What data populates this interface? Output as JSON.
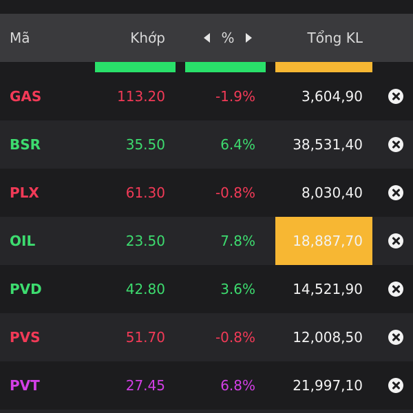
{
  "header": {
    "col_symbol": "Mã",
    "col_match": "Khớp",
    "col_percent": "%",
    "col_total_volume": "Tổng KL"
  },
  "colors": {
    "up": "#3ddc6f",
    "down": "#f23a57",
    "ceiling": "#d33fe6",
    "highlight": "#f7b733",
    "indicator_green": "#29e06a"
  },
  "rows": [
    {
      "symbol": "GAS",
      "price": "113.20",
      "percent": "-1.9%",
      "volume": "3,604,90",
      "trend": "down",
      "highlight": false
    },
    {
      "symbol": "BSR",
      "price": "35.50",
      "percent": "6.4%",
      "volume": "38,531,40",
      "trend": "up",
      "highlight": false
    },
    {
      "symbol": "PLX",
      "price": "61.30",
      "percent": "-0.8%",
      "volume": "8,030,40",
      "trend": "down",
      "highlight": false
    },
    {
      "symbol": "OIL",
      "price": "23.50",
      "percent": "7.8%",
      "volume": "18,887,70",
      "trend": "up",
      "highlight": true
    },
    {
      "symbol": "PVD",
      "price": "42.80",
      "percent": "3.6%",
      "volume": "14,521,90",
      "trend": "up",
      "highlight": false
    },
    {
      "symbol": "PVS",
      "price": "51.70",
      "percent": "-0.8%",
      "volume": "12,008,50",
      "trend": "down",
      "highlight": false
    },
    {
      "symbol": "PVT",
      "price": "27.45",
      "percent": "6.8%",
      "volume": "21,997,10",
      "trend": "ceiling",
      "highlight": false
    }
  ],
  "icons": {
    "sort_prev": "caret-left-icon",
    "sort_next": "caret-right-icon",
    "remove": "close-circle-icon"
  }
}
